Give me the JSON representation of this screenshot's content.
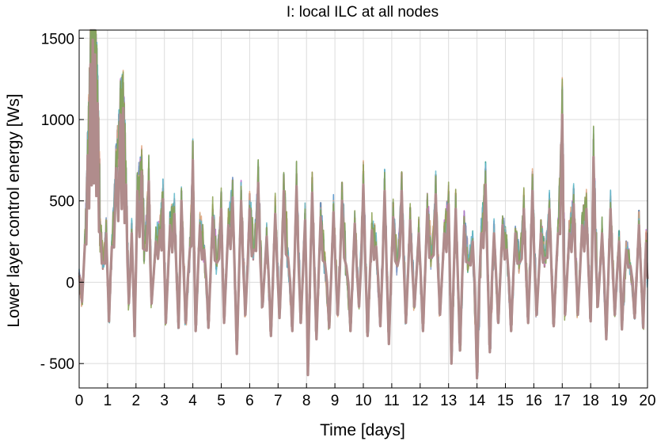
{
  "chart_data": {
    "type": "line",
    "title": "I: local ILC at all nodes",
    "xlabel": "Time [days]",
    "ylabel": "Lower layer control energy [Ws]",
    "xlim": [
      0,
      20
    ],
    "ylim": [
      -650,
      1550
    ],
    "xticks": [
      0,
      1,
      2,
      3,
      4,
      5,
      6,
      7,
      8,
      9,
      10,
      11,
      12,
      13,
      14,
      15,
      16,
      17,
      18,
      19,
      20
    ],
    "xtick_labels": [
      "0",
      "1",
      "2",
      "3",
      "4",
      "5",
      "6",
      "7",
      "8",
      "9",
      "10",
      "11",
      "12",
      "13",
      "14",
      "15",
      "16",
      "17",
      "18",
      "19",
      "20"
    ],
    "yticks": [
      -500,
      0,
      500,
      1000,
      1500
    ],
    "ytick_labels": [
      "- 500",
      "0",
      "500",
      "1000",
      "1500"
    ],
    "grid": true,
    "legend": "none",
    "colors": [
      "#b08c8c",
      "#4f91c9",
      "#3aa88a",
      "#c46fd1",
      "#7f95c4",
      "#e0a37a",
      "#5fb7c9",
      "#8aa050"
    ],
    "series_envelope": {
      "description_of_marks": "dense overlapping series",
      "peaks": [
        {
          "x": 0.0,
          "y": 40
        },
        {
          "x": 0.1,
          "y": -120
        },
        {
          "x": 0.2,
          "y": 230
        },
        {
          "x": 0.3,
          "y": 780
        },
        {
          "x": 0.4,
          "y": 1340
        },
        {
          "x": 0.48,
          "y": 1490
        },
        {
          "x": 0.56,
          "y": 1400
        },
        {
          "x": 0.65,
          "y": 1100
        },
        {
          "x": 0.75,
          "y": 300
        },
        {
          "x": 0.85,
          "y": 120
        },
        {
          "x": 0.95,
          "y": 300
        },
        {
          "x": 1.05,
          "y": -240
        },
        {
          "x": 1.15,
          "y": 220
        },
        {
          "x": 1.3,
          "y": 700
        },
        {
          "x": 1.45,
          "y": 1030
        },
        {
          "x": 1.55,
          "y": 1070
        },
        {
          "x": 1.65,
          "y": 600
        },
        {
          "x": 1.75,
          "y": -130
        },
        {
          "x": 1.85,
          "y": 300
        },
        {
          "x": 1.95,
          "y": -330
        },
        {
          "x": 2.05,
          "y": 560
        },
        {
          "x": 2.2,
          "y": 680
        },
        {
          "x": 2.3,
          "y": 200
        },
        {
          "x": 2.45,
          "y": 620
        },
        {
          "x": 2.55,
          "y": -130
        },
        {
          "x": 2.7,
          "y": 250
        },
        {
          "x": 2.85,
          "y": 320
        },
        {
          "x": 2.95,
          "y": 510
        },
        {
          "x": 3.05,
          "y": -250
        },
        {
          "x": 3.2,
          "y": 350
        },
        {
          "x": 3.35,
          "y": 420
        },
        {
          "x": 3.5,
          "y": -280
        },
        {
          "x": 3.6,
          "y": 500
        },
        {
          "x": 3.75,
          "y": -250
        },
        {
          "x": 3.9,
          "y": 210
        },
        {
          "x": 4.0,
          "y": 750
        },
        {
          "x": 4.1,
          "y": -300
        },
        {
          "x": 4.25,
          "y": 350
        },
        {
          "x": 4.4,
          "y": 200
        },
        {
          "x": 4.55,
          "y": -280
        },
        {
          "x": 4.7,
          "y": 400
        },
        {
          "x": 4.85,
          "y": 120
        },
        {
          "x": 5.0,
          "y": 450
        },
        {
          "x": 5.1,
          "y": -250
        },
        {
          "x": 5.25,
          "y": 350
        },
        {
          "x": 5.4,
          "y": 520
        },
        {
          "x": 5.55,
          "y": -440
        },
        {
          "x": 5.7,
          "y": 500
        },
        {
          "x": 5.85,
          "y": -200
        },
        {
          "x": 6.0,
          "y": 450
        },
        {
          "x": 6.15,
          "y": 200
        },
        {
          "x": 6.3,
          "y": 610
        },
        {
          "x": 6.45,
          "y": -150
        },
        {
          "x": 6.6,
          "y": 280
        },
        {
          "x": 6.75,
          "y": -330
        },
        {
          "x": 6.9,
          "y": 420
        },
        {
          "x": 7.05,
          "y": -220
        },
        {
          "x": 7.2,
          "y": 560
        },
        {
          "x": 7.35,
          "y": 150
        },
        {
          "x": 7.5,
          "y": -300
        },
        {
          "x": 7.65,
          "y": 590
        },
        {
          "x": 7.8,
          "y": -250
        },
        {
          "x": 7.95,
          "y": 380
        },
        {
          "x": 8.05,
          "y": -570
        },
        {
          "x": 8.2,
          "y": 550
        },
        {
          "x": 8.35,
          "y": -350
        },
        {
          "x": 8.5,
          "y": 400
        },
        {
          "x": 8.65,
          "y": 120
        },
        {
          "x": 8.8,
          "y": -280
        },
        {
          "x": 8.95,
          "y": 430
        },
        {
          "x": 9.1,
          "y": -200
        },
        {
          "x": 9.25,
          "y": 500
        },
        {
          "x": 9.4,
          "y": 100
        },
        {
          "x": 9.55,
          "y": -300
        },
        {
          "x": 9.7,
          "y": 360
        },
        {
          "x": 9.85,
          "y": -150
        },
        {
          "x": 10.0,
          "y": 600
        },
        {
          "x": 10.15,
          "y": -330
        },
        {
          "x": 10.3,
          "y": 320
        },
        {
          "x": 10.45,
          "y": 220
        },
        {
          "x": 10.6,
          "y": -270
        },
        {
          "x": 10.75,
          "y": 560
        },
        {
          "x": 10.9,
          "y": -380
        },
        {
          "x": 11.05,
          "y": 400
        },
        {
          "x": 11.2,
          "y": 100
        },
        {
          "x": 11.35,
          "y": 560
        },
        {
          "x": 11.5,
          "y": -250
        },
        {
          "x": 11.65,
          "y": 380
        },
        {
          "x": 11.8,
          "y": -150
        },
        {
          "x": 11.95,
          "y": 300
        },
        {
          "x": 12.1,
          "y": -300
        },
        {
          "x": 12.25,
          "y": 450
        },
        {
          "x": 12.4,
          "y": 150
        },
        {
          "x": 12.55,
          "y": 540
        },
        {
          "x": 12.7,
          "y": -200
        },
        {
          "x": 12.85,
          "y": 300
        },
        {
          "x": 13.0,
          "y": 480
        },
        {
          "x": 13.1,
          "y": -500
        },
        {
          "x": 13.25,
          "y": 450
        },
        {
          "x": 13.4,
          "y": -420
        },
        {
          "x": 13.55,
          "y": 350
        },
        {
          "x": 13.7,
          "y": 120
        },
        {
          "x": 13.85,
          "y": 250
        },
        {
          "x": 14.0,
          "y": -590
        },
        {
          "x": 14.15,
          "y": 300
        },
        {
          "x": 14.3,
          "y": 600
        },
        {
          "x": 14.45,
          "y": -430
        },
        {
          "x": 14.6,
          "y": 300
        },
        {
          "x": 14.75,
          "y": -250
        },
        {
          "x": 14.9,
          "y": 350
        },
        {
          "x": 15.05,
          "y": 200
        },
        {
          "x": 15.2,
          "y": -300
        },
        {
          "x": 15.35,
          "y": 300
        },
        {
          "x": 15.5,
          "y": 120
        },
        {
          "x": 15.65,
          "y": 450
        },
        {
          "x": 15.8,
          "y": -250
        },
        {
          "x": 15.95,
          "y": 560
        },
        {
          "x": 16.1,
          "y": -200
        },
        {
          "x": 16.25,
          "y": 300
        },
        {
          "x": 16.4,
          "y": 150
        },
        {
          "x": 16.55,
          "y": 450
        },
        {
          "x": 16.7,
          "y": -270
        },
        {
          "x": 16.85,
          "y": 300
        },
        {
          "x": 17.0,
          "y": 1030
        },
        {
          "x": 17.1,
          "y": -200
        },
        {
          "x": 17.25,
          "y": 300
        },
        {
          "x": 17.4,
          "y": 480
        },
        {
          "x": 17.55,
          "y": -200
        },
        {
          "x": 17.7,
          "y": 350
        },
        {
          "x": 17.85,
          "y": 450
        },
        {
          "x": 18.0,
          "y": -240
        },
        {
          "x": 18.1,
          "y": 770
        },
        {
          "x": 18.25,
          "y": -150
        },
        {
          "x": 18.4,
          "y": 300
        },
        {
          "x": 18.55,
          "y": -350
        },
        {
          "x": 18.7,
          "y": 450
        },
        {
          "x": 18.85,
          "y": -200
        },
        {
          "x": 19.0,
          "y": 250
        },
        {
          "x": 19.1,
          "y": -290
        },
        {
          "x": 19.25,
          "y": 200
        },
        {
          "x": 19.4,
          "y": 100
        },
        {
          "x": 19.55,
          "y": -220
        },
        {
          "x": 19.7,
          "y": 350
        },
        {
          "x": 19.85,
          "y": -280
        },
        {
          "x": 19.95,
          "y": 240
        },
        {
          "x": 20.0,
          "y": 20
        }
      ]
    }
  }
}
